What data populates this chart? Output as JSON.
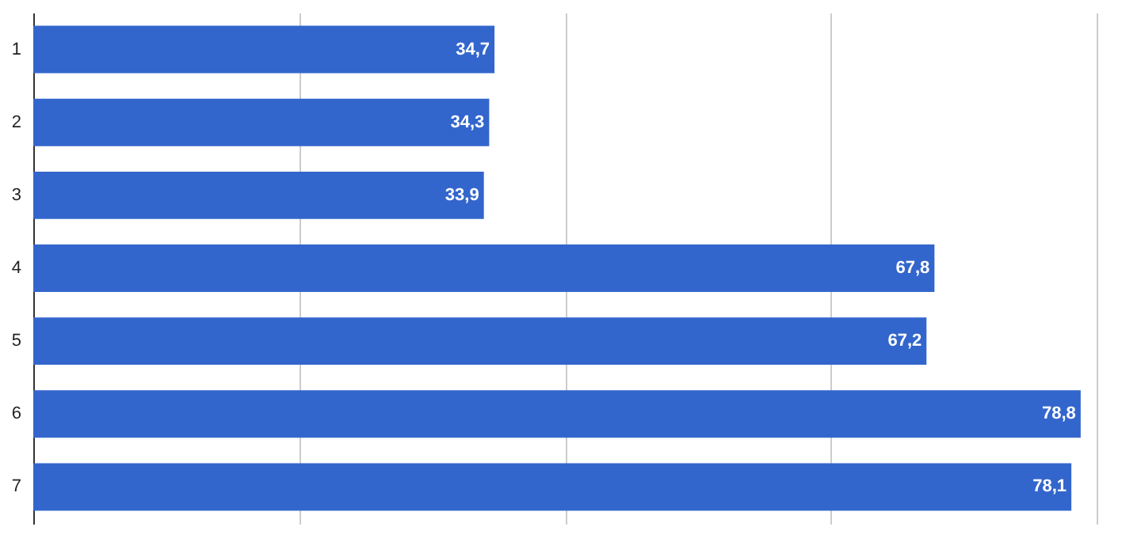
{
  "chart_data": {
    "type": "bar",
    "orientation": "horizontal",
    "categories": [
      "1",
      "2",
      "3",
      "4",
      "5",
      "6",
      "7"
    ],
    "values": [
      34.7,
      34.3,
      33.9,
      67.8,
      67.2,
      78.8,
      78.1
    ],
    "value_labels": [
      "34,7",
      "34,3",
      "33,9",
      "67,8",
      "67,2",
      "78,8",
      "78,1"
    ],
    "color": "#3366cc",
    "xlim": [
      0,
      80
    ],
    "xticks": [
      {
        "value": 0,
        "label": null
      },
      {
        "value": 20,
        "label": null
      },
      {
        "value": 40,
        "label": null
      },
      {
        "value": 60,
        "label": null
      },
      {
        "value": 80,
        "label": null
      }
    ],
    "grid": "x",
    "tick_labels": "y"
  }
}
